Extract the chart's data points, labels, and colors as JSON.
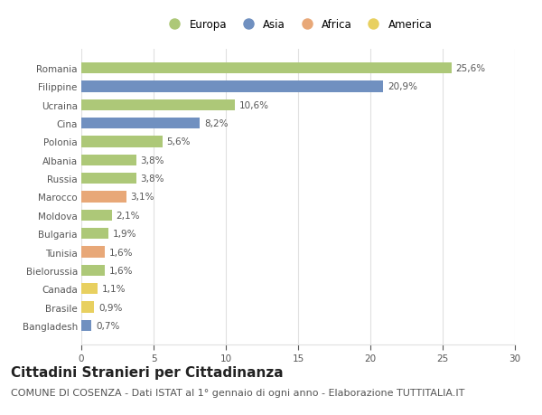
{
  "countries": [
    "Romania",
    "Filippine",
    "Ucraina",
    "Cina",
    "Polonia",
    "Albania",
    "Russia",
    "Marocco",
    "Moldova",
    "Bulgaria",
    "Tunisia",
    "Bielorussia",
    "Canada",
    "Brasile",
    "Bangladesh"
  ],
  "values": [
    25.6,
    20.9,
    10.6,
    8.2,
    5.6,
    3.8,
    3.8,
    3.1,
    2.1,
    1.9,
    1.6,
    1.6,
    1.1,
    0.9,
    0.7
  ],
  "labels": [
    "25,6%",
    "20,9%",
    "10,6%",
    "8,2%",
    "5,6%",
    "3,8%",
    "3,8%",
    "3,1%",
    "2,1%",
    "1,9%",
    "1,6%",
    "1,6%",
    "1,1%",
    "0,9%",
    "0,7%"
  ],
  "continents": [
    "Europa",
    "Asia",
    "Europa",
    "Asia",
    "Europa",
    "Europa",
    "Europa",
    "Africa",
    "Europa",
    "Europa",
    "Africa",
    "Europa",
    "America",
    "America",
    "Asia"
  ],
  "colors": {
    "Europa": "#adc878",
    "Asia": "#7090c0",
    "Africa": "#e8a878",
    "America": "#e8d060"
  },
  "legend_order": [
    "Europa",
    "Asia",
    "Africa",
    "America"
  ],
  "xlim": [
    0,
    30
  ],
  "xticks": [
    0,
    5,
    10,
    15,
    20,
    25,
    30
  ],
  "title": "Cittadini Stranieri per Cittadinanza",
  "subtitle": "COMUNE DI COSENZA - Dati ISTAT al 1° gennaio di ogni anno - Elaborazione TUTTITALIA.IT",
  "background_color": "#ffffff",
  "plot_area_color": "#ffffff",
  "bar_height": 0.6,
  "title_fontsize": 11,
  "subtitle_fontsize": 8,
  "label_fontsize": 7.5,
  "tick_fontsize": 7.5,
  "legend_fontsize": 8.5,
  "grid_color": "#e0e0e0",
  "text_color": "#555555",
  "title_color": "#222222"
}
